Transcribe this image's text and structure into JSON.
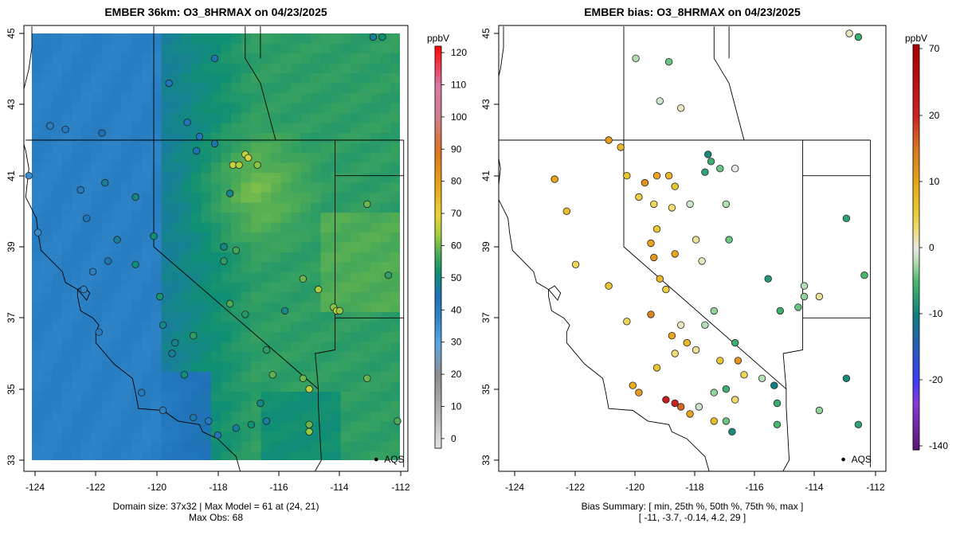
{
  "chart_data": [
    {
      "type": "map",
      "title": "EMBER 36km: O3_8HRMAX on 04/23/2025",
      "xlabel": "",
      "ylabel": "",
      "xlim": [
        -124.2,
        -111.8
      ],
      "ylim": [
        32.8,
        45.2
      ],
      "x_ticks": [
        "-124",
        "-122",
        "-120",
        "-118",
        "-116",
        "-114",
        "-112"
      ],
      "y_ticks": [
        "33",
        "35",
        "37",
        "39",
        "41",
        "43",
        "45"
      ],
      "colorbar": {
        "unit": "ppbV",
        "range": [
          -3,
          122
        ],
        "ticks": [
          "120",
          "110",
          "100",
          "90",
          "80",
          "70",
          "60",
          "50",
          "40",
          "30",
          "20",
          "10",
          "0"
        ]
      },
      "footer": [
        "Domain size: 37x32 | Max Model = 61 at (24, 21)",
        "Max Obs: 68"
      ],
      "model_field_summary": {
        "ocean_ppb": 40,
        "coast_ppb": 48,
        "inland_ppb": 55,
        "peak_region_ppb": 61,
        "peak_location": [
          -116.8,
          40.6
        ]
      },
      "marker_label": "AQS",
      "sites": [
        {
          "lon": -117.0,
          "lat": 41.6,
          "value": 66
        },
        {
          "lon": -116.9,
          "lat": 41.5,
          "value": 68
        },
        {
          "lon": -117.4,
          "lat": 41.3,
          "value": 67
        },
        {
          "lon": -117.2,
          "lat": 41.3,
          "value": 65
        },
        {
          "lon": -116.6,
          "lat": 41.3,
          "value": 62
        },
        {
          "lon": -114.6,
          "lat": 37.8,
          "value": 64
        },
        {
          "lon": -114.1,
          "lat": 37.3,
          "value": 62
        },
        {
          "lon": -114.0,
          "lat": 37.2,
          "value": 66
        },
        {
          "lon": -113.9,
          "lat": 37.2,
          "value": 63
        },
        {
          "lon": -115.1,
          "lat": 38.1,
          "value": 60
        },
        {
          "lon": -116.1,
          "lat": 35.4,
          "value": 59
        },
        {
          "lon": -115.1,
          "lat": 35.3,
          "value": 60
        },
        {
          "lon": -114.9,
          "lat": 35.0,
          "value": 66
        },
        {
          "lon": -113.0,
          "lat": 35.3,
          "value": 60
        },
        {
          "lon": -114.9,
          "lat": 33.8,
          "value": 63
        },
        {
          "lon": -114.9,
          "lat": 34.0,
          "value": 60
        },
        {
          "lon": -112.0,
          "lat": 34.1,
          "value": 58
        },
        {
          "lon": -112.3,
          "lat": 38.2,
          "value": 55
        },
        {
          "lon": -113.0,
          "lat": 40.2,
          "value": 60
        },
        {
          "lon": -112.5,
          "lat": 44.9,
          "value": 52
        },
        {
          "lon": -112.8,
          "lat": 44.9,
          "value": 48
        },
        {
          "lon": -118.0,
          "lat": 44.3,
          "value": 46
        },
        {
          "lon": -119.5,
          "lat": 43.6,
          "value": 44
        },
        {
          "lon": -118.9,
          "lat": 42.5,
          "value": 44
        },
        {
          "lon": -118.5,
          "lat": 42.1,
          "value": 44
        },
        {
          "lon": -118.6,
          "lat": 41.7,
          "value": 45
        },
        {
          "lon": -118.0,
          "lat": 41.9,
          "value": 46
        },
        {
          "lon": -117.5,
          "lat": 40.5,
          "value": 49
        },
        {
          "lon": -117.7,
          "lat": 39.0,
          "value": 50
        },
        {
          "lon": -117.3,
          "lat": 38.9,
          "value": 57
        },
        {
          "lon": -117.7,
          "lat": 38.6,
          "value": 55
        },
        {
          "lon": -117.5,
          "lat": 37.4,
          "value": 58
        },
        {
          "lon": -117.0,
          "lat": 37.1,
          "value": 54
        },
        {
          "lon": -116.3,
          "lat": 36.1,
          "value": 55
        },
        {
          "lon": -115.7,
          "lat": 37.2,
          "value": 50
        },
        {
          "lon": -116.5,
          "lat": 34.6,
          "value": 50
        },
        {
          "lon": -116.3,
          "lat": 34.1,
          "value": 48
        },
        {
          "lon": -117.9,
          "lat": 33.7,
          "value": 44
        },
        {
          "lon": -117.3,
          "lat": 33.9,
          "value": 48
        },
        {
          "lon": -116.8,
          "lat": 34.0,
          "value": 52
        },
        {
          "lon": -119.0,
          "lat": 35.4,
          "value": 52
        },
        {
          "lon": -119.4,
          "lat": 36.0,
          "value": 48
        },
        {
          "lon": -118.2,
          "lat": 34.1,
          "value": 42
        },
        {
          "lon": -118.7,
          "lat": 34.2,
          "value": 46
        },
        {
          "lon": -119.7,
          "lat": 34.4,
          "value": 40
        },
        {
          "lon": -120.4,
          "lat": 34.9,
          "value": 42
        },
        {
          "lon": -121.8,
          "lat": 36.6,
          "value": 42
        },
        {
          "lon": -122.3,
          "lat": 37.8,
          "value": 38
        },
        {
          "lon": -122.0,
          "lat": 38.3,
          "value": 40
        },
        {
          "lon": -121.5,
          "lat": 38.6,
          "value": 46
        },
        {
          "lon": -121.2,
          "lat": 39.2,
          "value": 48
        },
        {
          "lon": -122.2,
          "lat": 39.8,
          "value": 44
        },
        {
          "lon": -122.4,
          "lat": 40.6,
          "value": 42
        },
        {
          "lon": -121.6,
          "lat": 40.8,
          "value": 48
        },
        {
          "lon": -120.6,
          "lat": 40.4,
          "value": 50
        },
        {
          "lon": -120.0,
          "lat": 39.3,
          "value": 52
        },
        {
          "lon": -120.6,
          "lat": 38.5,
          "value": 52
        },
        {
          "lon": -119.8,
          "lat": 37.6,
          "value": 53
        },
        {
          "lon": -119.7,
          "lat": 36.8,
          "value": 50
        },
        {
          "lon": -118.7,
          "lat": 36.5,
          "value": 55
        },
        {
          "lon": -119.3,
          "lat": 36.3,
          "value": 49
        },
        {
          "lon": -123.8,
          "lat": 39.4,
          "value": 36
        },
        {
          "lon": -124.1,
          "lat": 41.0,
          "value": 36
        },
        {
          "lon": -123.4,
          "lat": 42.4,
          "value": 40
        },
        {
          "lon": -122.9,
          "lat": 42.3,
          "value": 42
        },
        {
          "lon": -121.7,
          "lat": 42.2,
          "value": 45
        }
      ]
    },
    {
      "type": "map",
      "title": "EMBER bias: O3_8HRMAX on 04/23/2025",
      "xlabel": "",
      "ylabel": "",
      "xlim": [
        -124.2,
        -111.8
      ],
      "ylim": [
        32.8,
        45.2
      ],
      "x_ticks": [
        "-124",
        "-122",
        "-120",
        "-118",
        "-116",
        "-114",
        "-112"
      ],
      "y_ticks": [
        "33",
        "35",
        "37",
        "39",
        "41",
        "43",
        "45"
      ],
      "colorbar": {
        "unit": "ppbV",
        "ticks": [
          "70",
          "20",
          "10",
          "0",
          "-10",
          "-20",
          "-140"
        ]
      },
      "footer": [
        "Bias Summary: [ min, 25th %, 50th %, 75th %, max ]",
        "[ -11,   -3.7,   -0.14,   4.2,   29 ]"
      ],
      "bias_summary": {
        "min": -11,
        "p25": -3.7,
        "p50": -0.14,
        "p75": 4.2,
        "max": 29
      },
      "marker_label": "AQS",
      "sites": [
        {
          "lon": -120.1,
          "lat": 41.8,
          "value": 8
        },
        {
          "lon": -119.9,
          "lat": 41.0,
          "value": 6
        },
        {
          "lon": -119.3,
          "lat": 40.8,
          "value": 12
        },
        {
          "lon": -118.9,
          "lat": 41.0,
          "value": 10
        },
        {
          "lon": -118.5,
          "lat": 41.0,
          "value": 8
        },
        {
          "lon": -118.3,
          "lat": 40.7,
          "value": 6
        },
        {
          "lon": -119.5,
          "lat": 40.4,
          "value": 5
        },
        {
          "lon": -119.0,
          "lat": 40.2,
          "value": 4
        },
        {
          "lon": -118.4,
          "lat": 40.1,
          "value": 3
        },
        {
          "lon": -118.9,
          "lat": 39.5,
          "value": 6
        },
        {
          "lon": -119.1,
          "lat": 39.1,
          "value": 10
        },
        {
          "lon": -119.0,
          "lat": 38.7,
          "value": 12
        },
        {
          "lon": -118.3,
          "lat": 38.8,
          "value": 10
        },
        {
          "lon": -117.6,
          "lat": 39.2,
          "value": 2
        },
        {
          "lon": -117.4,
          "lat": 38.6,
          "value": 1
        },
        {
          "lon": -118.8,
          "lat": 38.1,
          "value": 8
        },
        {
          "lon": -118.6,
          "lat": 37.8,
          "value": 5
        },
        {
          "lon": -118.4,
          "lat": 36.5,
          "value": 10
        },
        {
          "lon": -117.9,
          "lat": 36.3,
          "value": 8
        },
        {
          "lon": -117.6,
          "lat": 36.1,
          "value": 2
        },
        {
          "lon": -116.8,
          "lat": 35.8,
          "value": 6
        },
        {
          "lon": -116.2,
          "lat": 35.8,
          "value": 12
        },
        {
          "lon": -116.0,
          "lat": 35.4,
          "value": 4
        },
        {
          "lon": -115.4,
          "lat": 35.3,
          "value": -2
        },
        {
          "lon": -115.0,
          "lat": 35.1,
          "value": -10
        },
        {
          "lon": -114.9,
          "lat": 34.6,
          "value": -6
        },
        {
          "lon": -114.9,
          "lat": 34.0,
          "value": -5
        },
        {
          "lon": -113.5,
          "lat": 34.4,
          "value": -3
        },
        {
          "lon": -112.2,
          "lat": 34.0,
          "value": -7
        },
        {
          "lon": -112.6,
          "lat": 35.3,
          "value": -9
        },
        {
          "lon": -114.8,
          "lat": 37.2,
          "value": -6
        },
        {
          "lon": -114.2,
          "lat": 37.3,
          "value": -4
        },
        {
          "lon": -114.0,
          "lat": 37.6,
          "value": -3
        },
        {
          "lon": -114.0,
          "lat": 37.9,
          "value": -2
        },
        {
          "lon": -115.2,
          "lat": 38.1,
          "value": -8
        },
        {
          "lon": -113.5,
          "lat": 37.6,
          "value": 2
        },
        {
          "lon": -112.0,
          "lat": 38.2,
          "value": -5
        },
        {
          "lon": -112.6,
          "lat": 39.8,
          "value": -7
        },
        {
          "lon": -117.2,
          "lat": 41.6,
          "value": -9
        },
        {
          "lon": -117.1,
          "lat": 41.4,
          "value": -6
        },
        {
          "lon": -116.8,
          "lat": 41.2,
          "value": -4
        },
        {
          "lon": -116.3,
          "lat": 41.2,
          "value": 0
        },
        {
          "lon": -117.3,
          "lat": 41.1,
          "value": -7
        },
        {
          "lon": -117.8,
          "lat": 40.2,
          "value": -1
        },
        {
          "lon": -116.6,
          "lat": 40.2,
          "value": -2
        },
        {
          "lon": -116.5,
          "lat": 39.2,
          "value": -4
        },
        {
          "lon": -117.0,
          "lat": 37.2,
          "value": -3
        },
        {
          "lon": -117.3,
          "lat": 36.8,
          "value": -2
        },
        {
          "lon": -116.3,
          "lat": 36.3,
          "value": -6
        },
        {
          "lon": -117.0,
          "lat": 34.9,
          "value": -3
        },
        {
          "lon": -117.5,
          "lat": 34.5,
          "value": -1
        },
        {
          "lon": -116.6,
          "lat": 34.1,
          "value": -4
        },
        {
          "lon": -116.4,
          "lat": 33.8,
          "value": -9
        },
        {
          "lon": -118.1,
          "lat": 36.8,
          "value": 1
        },
        {
          "lon": -119.1,
          "lat": 37.1,
          "value": 14
        },
        {
          "lon": -118.3,
          "lat": 36.0,
          "value": 3
        },
        {
          "lon": -119.9,
          "lat": 36.9,
          "value": 4
        },
        {
          "lon": -120.5,
          "lat": 37.9,
          "value": 6
        },
        {
          "lon": -121.6,
          "lat": 38.5,
          "value": 4
        },
        {
          "lon": -121.9,
          "lat": 40.0,
          "value": 7
        },
        {
          "lon": -122.3,
          "lat": 40.9,
          "value": 10
        },
        {
          "lon": -120.5,
          "lat": 42.0,
          "value": 11
        },
        {
          "lon": -119.6,
          "lat": 44.3,
          "value": -2
        },
        {
          "lon": -118.5,
          "lat": 44.2,
          "value": -4
        },
        {
          "lon": -118.1,
          "lat": 42.9,
          "value": 1
        },
        {
          "lon": -118.8,
          "lat": 43.1,
          "value": -1
        },
        {
          "lon": -112.2,
          "lat": 44.9,
          "value": -6
        },
        {
          "lon": -112.5,
          "lat": 45.0,
          "value": 1
        },
        {
          "lon": -116.6,
          "lat": 35.0,
          "value": -6
        },
        {
          "lon": -118.6,
          "lat": 34.7,
          "value": 29
        },
        {
          "lon": -118.3,
          "lat": 34.6,
          "value": 22
        },
        {
          "lon": -118.1,
          "lat": 34.5,
          "value": 16
        },
        {
          "lon": -117.8,
          "lat": 34.3,
          "value": 10
        },
        {
          "lon": -119.5,
          "lat": 34.9,
          "value": 11
        },
        {
          "lon": -119.7,
          "lat": 35.1,
          "value": 9
        },
        {
          "lon": -118.9,
          "lat": 35.6,
          "value": 6
        },
        {
          "lon": -117.0,
          "lat": 34.1,
          "value": 7
        },
        {
          "lon": -116.3,
          "lat": 34.7,
          "value": 3
        }
      ]
    }
  ]
}
